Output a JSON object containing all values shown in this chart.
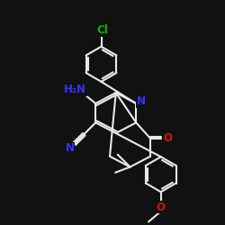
{
  "bg_color": "#111111",
  "bond_color": "#e8e8e8",
  "bond_width": 1.5,
  "atom_colors": {
    "N": "#3333ff",
    "O": "#dd1100",
    "Cl": "#00bb00",
    "C": "#e8e8e8"
  },
  "font_size_atom": 8.5,
  "font_size_small": 7.0,
  "xlim": [
    0,
    10
  ],
  "ylim": [
    0,
    10
  ]
}
